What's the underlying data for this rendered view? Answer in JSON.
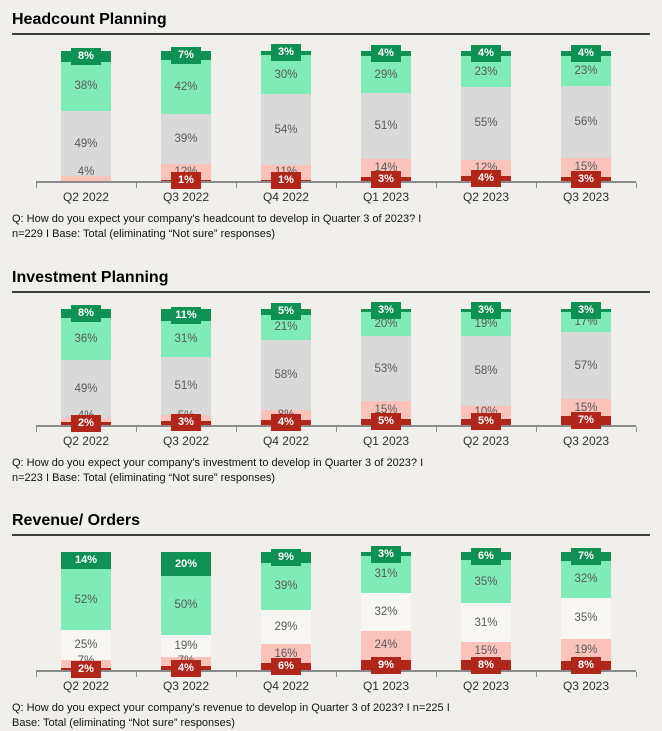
{
  "page": {
    "background": "#f1efec",
    "rule_color": "#3d3d3d",
    "axis_color": "#8a8a8a",
    "mid_label_color": "#595959"
  },
  "chart_data": [
    {
      "type": "stacked_bar_100",
      "title": "Headcount Planning",
      "caption_line1": "Q: How do you expect your company's headcount to develop in Quarter 3 of 2023? I",
      "caption_line2": "n=229 I Base: Total (eliminating “Not sure” responses)",
      "categories": [
        "Q2 2022",
        "Q3 2022",
        "Q4 2022",
        "Q1 2023",
        "Q2 2023",
        "Q3 2023"
      ],
      "unit": "%",
      "ylim": [
        0,
        100
      ],
      "legend": "none",
      "colors": {
        "top_dark_green": "#0e9152",
        "light_green": "#7febb9",
        "neutral_middle": "#d9d9d9",
        "light_red": "#f9c3ba",
        "bottom_dark_red": "#b1261a"
      },
      "series": [
        {
          "name": "top_dark_green",
          "values": [
            8,
            7,
            3,
            4,
            4,
            4
          ]
        },
        {
          "name": "light_green",
          "values": [
            38,
            42,
            30,
            29,
            23,
            23
          ]
        },
        {
          "name": "neutral_middle",
          "values": [
            49,
            39,
            54,
            51,
            55,
            56
          ]
        },
        {
          "name": "light_red",
          "values": [
            4,
            12,
            11,
            14,
            12,
            15
          ]
        },
        {
          "name": "bottom_dark_red",
          "values": [
            0,
            1,
            1,
            3,
            4,
            3
          ]
        }
      ]
    },
    {
      "type": "stacked_bar_100",
      "title": "Investment Planning",
      "caption_line1": "Q: How do you expect your company's investment to develop in Quarter 3 of 2023? I",
      "caption_line2": "n=223 I Base: Total (eliminating “Not sure” responses)",
      "categories": [
        "Q2 2022",
        "Q3 2022",
        "Q4 2022",
        "Q1 2023",
        "Q2 2023",
        "Q3 2023"
      ],
      "unit": "%",
      "ylim": [
        0,
        100
      ],
      "legend": "none",
      "colors": {
        "top_dark_green": "#0e9152",
        "light_green": "#7febb9",
        "neutral_middle": "#d9d9d9",
        "light_red": "#f9c3ba",
        "bottom_dark_red": "#b1261a"
      },
      "series": [
        {
          "name": "top_dark_green",
          "values": [
            8,
            11,
            5,
            3,
            3,
            3
          ]
        },
        {
          "name": "light_green",
          "values": [
            36,
            31,
            21,
            20,
            19,
            17
          ]
        },
        {
          "name": "neutral_middle",
          "values": [
            49,
            51,
            58,
            53,
            58,
            57
          ]
        },
        {
          "name": "light_red",
          "values": [
            4,
            5,
            8,
            15,
            10,
            15
          ]
        },
        {
          "name": "bottom_dark_red",
          "values": [
            2,
            3,
            4,
            5,
            5,
            7
          ]
        }
      ]
    },
    {
      "type": "stacked_bar_100",
      "title": "Revenue/ Orders",
      "caption_line1": "Q: How do you expect your company's revenue to develop in Quarter 3 of 2023? I n=225 I",
      "caption_line2": "Base: Total (eliminating “Not sure” responses)",
      "categories": [
        "Q2 2022",
        "Q3 2022",
        "Q4 2022",
        "Q1 2023",
        "Q2 2023",
        "Q3 2023"
      ],
      "unit": "%",
      "ylim": [
        0,
        100
      ],
      "legend": "none",
      "colors": {
        "top_dark_green": "#0e9152",
        "light_green": "#7febb9",
        "neutral_middle": "#f7f6f2",
        "light_red": "#f9c3ba",
        "bottom_dark_red": "#b1261a"
      },
      "series": [
        {
          "name": "top_dark_green",
          "values": [
            14,
            20,
            9,
            3,
            6,
            7
          ]
        },
        {
          "name": "light_green",
          "values": [
            52,
            50,
            39,
            31,
            35,
            32
          ]
        },
        {
          "name": "neutral_middle",
          "values": [
            25,
            19,
            29,
            32,
            31,
            35
          ]
        },
        {
          "name": "light_red",
          "values": [
            7,
            7,
            16,
            24,
            15,
            19
          ]
        },
        {
          "name": "bottom_dark_red",
          "values": [
            2,
            4,
            6,
            9,
            8,
            8
          ]
        }
      ]
    }
  ]
}
